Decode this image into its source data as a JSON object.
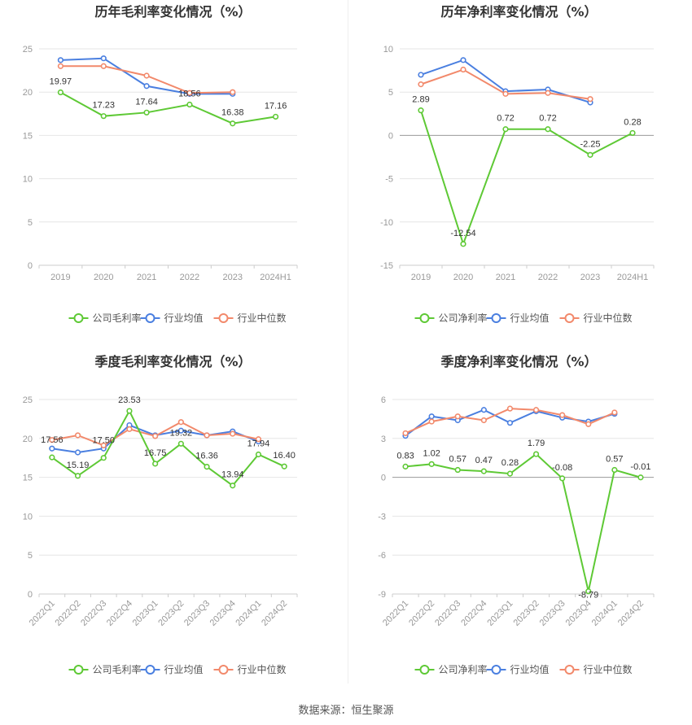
{
  "source": "数据来源：恒生聚源",
  "colors": {
    "company": "#5ec935",
    "industry_avg": "#4a7fe0",
    "industry_median": "#f2896b",
    "grid": "#e6e6e6",
    "axis": "#cccccc"
  },
  "chart_data": [
    {
      "type": "line",
      "title": "历年毛利率变化情况（%）",
      "categories": [
        "2019",
        "2020",
        "2021",
        "2022",
        "2023",
        "2024H1"
      ],
      "ylim": [
        0,
        25
      ],
      "yticks": [
        0,
        5,
        10,
        15,
        20,
        25
      ],
      "legend": "bottom",
      "series": [
        {
          "name": "公司毛利率",
          "key": "company",
          "values": [
            19.97,
            17.23,
            17.64,
            18.56,
            16.38,
            17.16
          ],
          "labels": [
            "19.97",
            "17.23",
            "17.64",
            "18.56",
            "16.38",
            "17.16"
          ]
        },
        {
          "name": "行业均值",
          "key": "industry_avg",
          "values": [
            23.7,
            23.9,
            20.7,
            19.8,
            19.8,
            null
          ]
        },
        {
          "name": "行业中位数",
          "key": "industry_median",
          "values": [
            23.0,
            23.0,
            21.9,
            19.9,
            20.0,
            null
          ]
        }
      ]
    },
    {
      "type": "line",
      "title": "历年净利率变化情况（%）",
      "categories": [
        "2019",
        "2020",
        "2021",
        "2022",
        "2023",
        "2024H1"
      ],
      "ylim": [
        -15,
        10
      ],
      "yticks": [
        -15,
        -10,
        -5,
        0,
        5,
        10
      ],
      "legend": "bottom",
      "series": [
        {
          "name": "公司净利率",
          "key": "company",
          "values": [
            2.89,
            -12.54,
            0.72,
            0.72,
            -2.25,
            0.28
          ],
          "labels": [
            "2.89",
            "-12.54",
            "0.72",
            "0.72",
            "-2.25",
            "0.28"
          ]
        },
        {
          "name": "行业均值",
          "key": "industry_avg",
          "values": [
            7.0,
            8.7,
            5.1,
            5.3,
            3.8,
            null
          ]
        },
        {
          "name": "行业中位数",
          "key": "industry_median",
          "values": [
            5.9,
            7.6,
            4.8,
            4.9,
            4.2,
            null
          ]
        }
      ]
    },
    {
      "type": "line",
      "title": "季度毛利率变化情况（%）",
      "categories": [
        "2022Q1",
        "2022Q2",
        "2022Q3",
        "2022Q4",
        "2023Q1",
        "2023Q2",
        "2023Q3",
        "2023Q4",
        "2024Q1",
        "2024Q2"
      ],
      "ylim": [
        0,
        25
      ],
      "yticks": [
        0,
        5,
        10,
        15,
        20,
        25
      ],
      "legend": "bottom",
      "series": [
        {
          "name": "公司毛利率",
          "key": "company",
          "values": [
            17.56,
            15.19,
            17.5,
            23.53,
            16.75,
            19.32,
            16.36,
            13.94,
            17.94,
            16.4
          ],
          "labels": [
            "17.56",
            "15.19",
            "17.50",
            "23.53",
            "16.75",
            "19.32",
            "16.36",
            "13.94",
            "17.94",
            "16.40"
          ]
        },
        {
          "name": "行业均值",
          "key": "industry_avg",
          "values": [
            18.7,
            18.2,
            18.7,
            21.7,
            20.4,
            21.0,
            20.4,
            20.9,
            19.6,
            null
          ]
        },
        {
          "name": "行业中位数",
          "key": "industry_median",
          "values": [
            19.8,
            20.4,
            19.1,
            21.2,
            20.3,
            22.1,
            20.4,
            20.6,
            19.9,
            null
          ]
        }
      ]
    },
    {
      "type": "line",
      "title": "季度净利率变化情况（%）",
      "categories": [
        "2022Q1",
        "2022Q2",
        "2022Q3",
        "2022Q4",
        "2023Q1",
        "2023Q2",
        "2023Q3",
        "2023Q4",
        "2024Q1",
        "2024Q2"
      ],
      "ylim": [
        -9,
        6
      ],
      "yticks": [
        -9,
        -6,
        -3,
        0,
        3,
        6
      ],
      "legend": "bottom",
      "series": [
        {
          "name": "公司净利率",
          "key": "company",
          "values": [
            0.83,
            1.02,
            0.57,
            0.47,
            0.28,
            1.79,
            -0.08,
            -8.79,
            0.57,
            -0.01
          ],
          "labels": [
            "0.83",
            "1.02",
            "0.57",
            "0.47",
            "0.28",
            "1.79",
            "-0.08",
            "-8.79",
            "0.57",
            "-0.01"
          ]
        },
        {
          "name": "行业均值",
          "key": "industry_avg",
          "values": [
            3.2,
            4.7,
            4.4,
            5.2,
            4.2,
            5.1,
            4.6,
            4.3,
            4.9,
            null
          ]
        },
        {
          "name": "行业中位数",
          "key": "industry_median",
          "values": [
            3.4,
            4.3,
            4.7,
            4.4,
            5.3,
            5.2,
            4.8,
            4.1,
            5.0,
            null
          ]
        }
      ]
    }
  ]
}
